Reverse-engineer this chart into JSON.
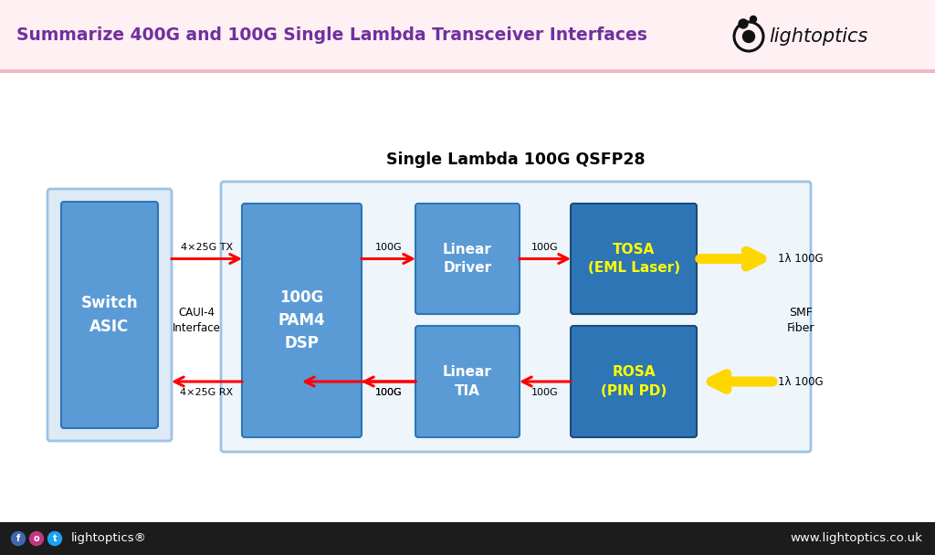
{
  "title": "Summarize 400G and 100G Single Lambda Transceiver Interfaces",
  "title_color": "#7030A0",
  "title_fontsize": 13.5,
  "diagram_title": "Single Lambda 100G QSFP28",
  "diagram_title_fontsize": 12.5,
  "bg_color": "#FFFFFF",
  "header_bg": "#FEF0F3",
  "header_line_color": "#F0B8C0",
  "footer_bg": "#1C1C1C",
  "footer_text_color": "#FFFFFF",
  "footer_text_left": "lightoptics®",
  "footer_text_right": "www.lightoptics.co.uk",
  "box_blue_medium": "#5B9BD5",
  "box_blue_dark": "#2E75B6",
  "outline_blue": "#9DC3E6",
  "outer_fill": "#DEEAF5",
  "qsfp_fill": "#EEF5FB",
  "yellow_text": "#FFFF00",
  "white_text": "#FFFFFF",
  "black_text": "#000000",
  "red_arrow": "#FF0000",
  "yellow_arrow": "#FFD700",
  "label_gray": "#404040"
}
